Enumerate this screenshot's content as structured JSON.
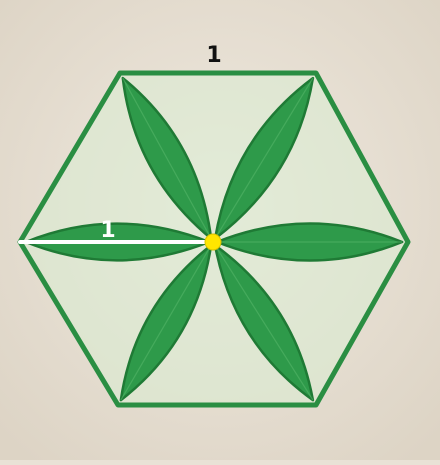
{
  "figure": {
    "top_side_label": "1",
    "radius_label": "1",
    "colors": {
      "background": "#e9e2d6",
      "petal_fill": "#2e9a4a",
      "petal_stroke": "#1f7a35",
      "hexagon_fill": "#cfe7c9",
      "hexagon_edge": "#2a8e43",
      "radius_line": "#ffffff",
      "center_point": "#ffe600",
      "top_label_color": "#111111",
      "radius_label_color": "#ffffff"
    },
    "petal_count": 6,
    "shape": "regular hexagon with six leaf petals"
  }
}
